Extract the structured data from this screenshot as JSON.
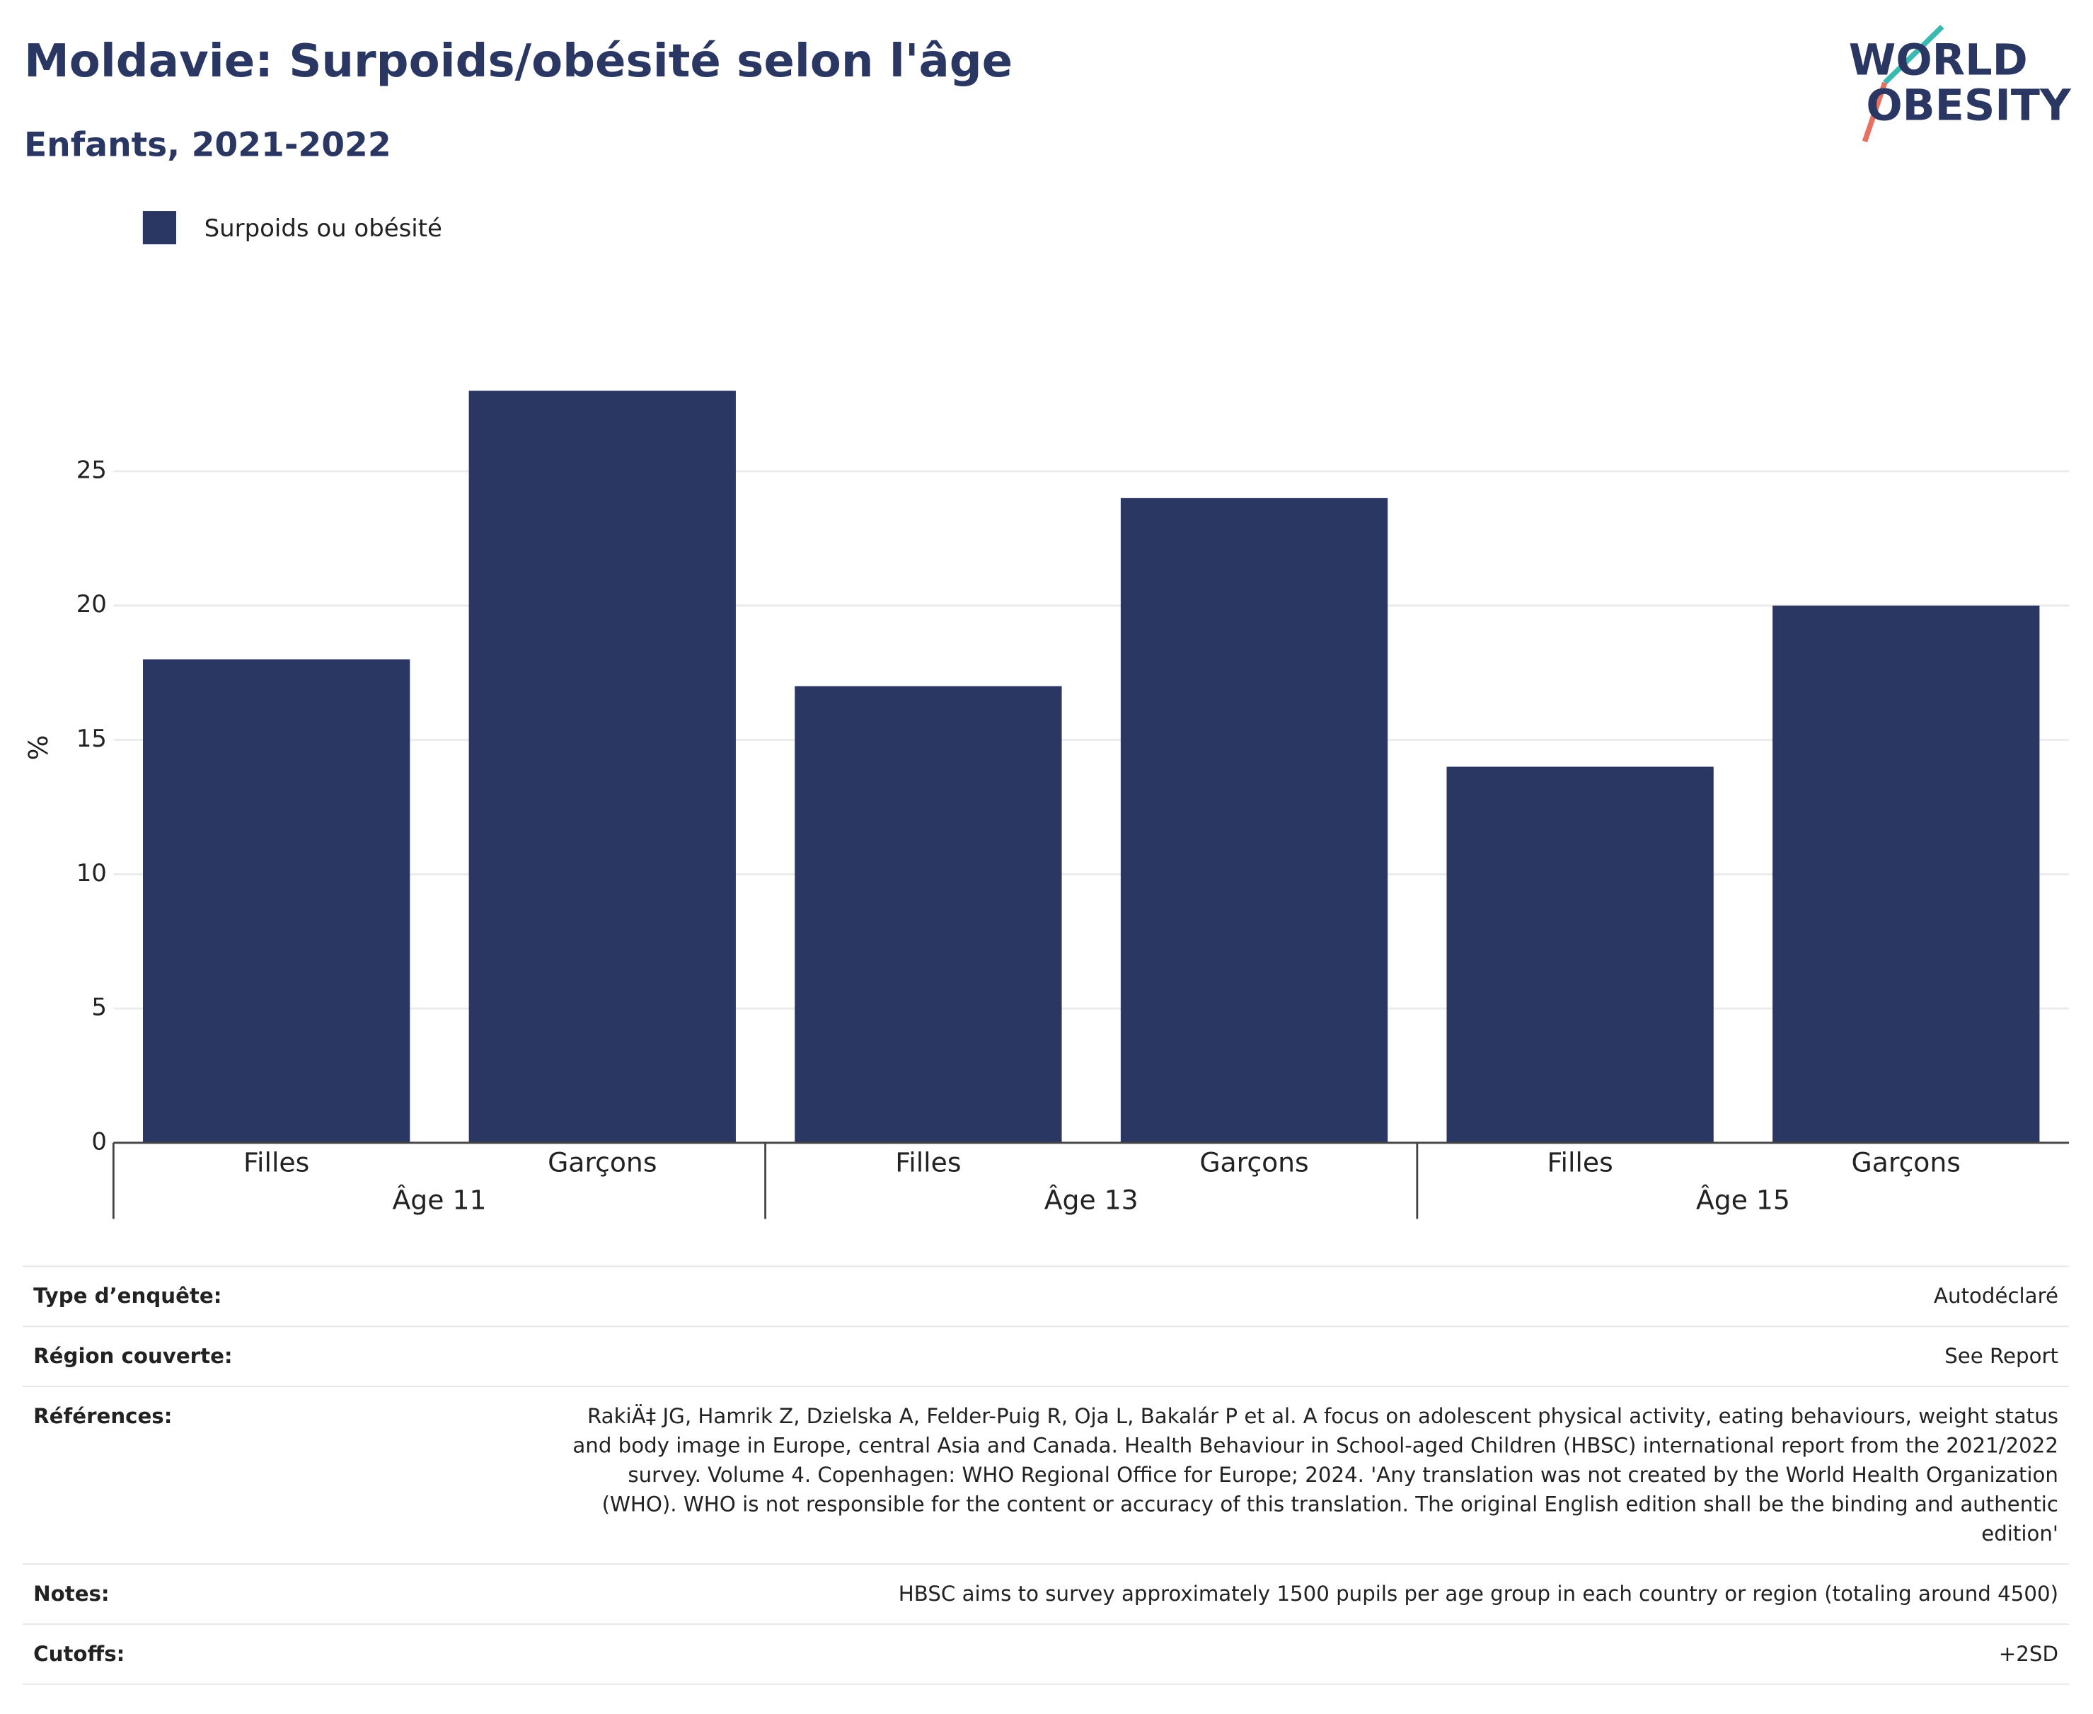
{
  "logo": [
    "WORLD",
    "OBESITY"
  ],
  "chart_data": {
    "type": "bar",
    "title": "Moldavie: Surpoids/obésité selon l'âge",
    "subtitle": "Enfants, 2021-2022",
    "y_label": "%",
    "categories": [
      "Filles",
      "Garçons",
      "Filles",
      "Garçons",
      "Filles",
      "Garçons"
    ],
    "groups": [
      "Âge 11",
      "Âge 13",
      "Âge 15"
    ],
    "series": [
      {
        "name": "Surpoids ou obésité",
        "color": "#2b3763",
        "values": [
          18,
          28,
          17,
          24,
          14,
          20
        ]
      }
    ],
    "ylim": [
      0,
      29.5
    ],
    "yticks": [
      0,
      5,
      10,
      15,
      20,
      25
    ],
    "grid": true
  },
  "table": {
    "rows": [
      [
        "Type d’enquête:",
        "Autodéclaré"
      ],
      [
        "Région couverte:",
        "See Report"
      ],
      [
        "Références:",
        "RakiÄ‡ JG, Hamrik Z, Dzielska A, Felder-Puig R, Oja L, Bakalár P et al. A focus on adolescent physical activity, eating behaviours, weight status and body image in Europe, central Asia and Canada. Health Behaviour in School-aged Children (HBSC) international report from the 2021/2022 survey. Volume 4. Copenhagen: WHO Regional Office for Europe; 2024. 'Any translation was not created by the World Health Organization (WHO). WHO is not responsible for the content or accuracy of this translation. The original English edition shall be the binding and authentic edition'"
      ],
      [
        "Notes:",
        "HBSC aims to survey approximately 1500 pupils per age group in each country or region (totaling around 4500)"
      ],
      [
        "Cutoffs:",
        "+2SD"
      ]
    ]
  }
}
